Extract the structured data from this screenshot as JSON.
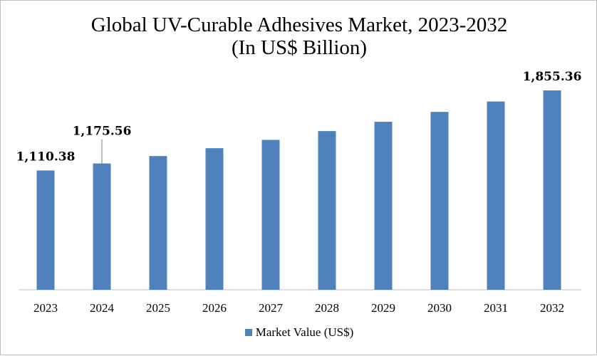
{
  "chart_data": {
    "type": "bar",
    "title": "Global UV-Curable Adhesives Market, 2023-2032",
    "subtitle": "(In US$ Billion)",
    "categories": [
      "2023",
      "2024",
      "2025",
      "2026",
      "2027",
      "2028",
      "2029",
      "2030",
      "2031",
      "2032"
    ],
    "series": [
      {
        "name": "Market Value (US$)",
        "values": [
          1110.38,
          1175.56,
          1244.6,
          1317.6,
          1394.9,
          1476.8,
          1563.5,
          1655.3,
          1752.4,
          1855.36
        ],
        "color": "#4f81bd"
      }
    ],
    "data_labels": [
      {
        "category": "2023",
        "text": "1,110.38"
      },
      {
        "category": "2024",
        "text": "1,175.56"
      },
      {
        "category": "2032",
        "text": "1,855.36"
      }
    ],
    "xlabel": "",
    "ylabel": "",
    "ylim": [
      0,
      1855.36
    ],
    "grid": false,
    "legend": "bottom"
  }
}
